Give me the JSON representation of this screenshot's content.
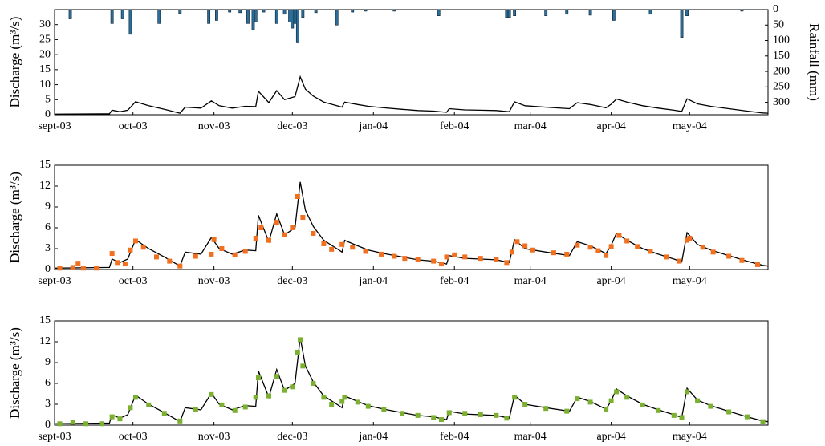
{
  "chart_data": [
    {
      "type": "line",
      "ylabel": "Discharge (m³/s)",
      "y2label": "Rainfall (mm)",
      "xlim": [
        0,
        273
      ],
      "xticks": [
        {
          "value": 0,
          "label": "sept-03"
        },
        {
          "value": 30,
          "label": "oct-03"
        },
        {
          "value": 61,
          "label": "nov-03"
        },
        {
          "value": 91,
          "label": "dec-03"
        },
        {
          "value": 122,
          "label": "jan-04"
        },
        {
          "value": 153,
          "label": "feb-04"
        },
        {
          "value": 182,
          "label": "mar-04"
        },
        {
          "value": 213,
          "label": "apr-04"
        },
        {
          "value": 243,
          "label": "may-04"
        }
      ],
      "ylim": [
        0,
        35
      ],
      "yticks": [
        0,
        5,
        10,
        15,
        20,
        25,
        30
      ],
      "y2lim": [
        0,
        340
      ],
      "y2ticks": [
        0,
        50,
        100,
        150,
        200,
        250,
        300
      ],
      "y2_inverted": true,
      "series": [
        {
          "type": "bar",
          "axis": "y2",
          "color": "#2c6e99",
          "x": [
            6,
            22,
            26,
            29,
            40,
            48,
            59,
            62,
            67,
            71,
            74,
            76,
            77,
            80,
            85,
            88,
            90,
            91,
            92,
            93,
            95,
            100,
            108,
            114,
            119,
            130,
            147,
            173,
            174,
            176,
            188,
            196,
            205,
            214,
            228,
            240,
            242,
            263
          ],
          "values": [
            30,
            45,
            30,
            80,
            45,
            12,
            45,
            35,
            8,
            10,
            45,
            65,
            40,
            8,
            45,
            15,
            40,
            60,
            45,
            105,
            25,
            10,
            50,
            8,
            5,
            5,
            20,
            25,
            25,
            20,
            20,
            15,
            18,
            35,
            15,
            90,
            20,
            5
          ]
        },
        {
          "type": "line",
          "color": "#000000",
          "x": [
            0,
            21,
            22,
            25,
            28,
            31,
            36,
            42,
            48,
            50,
            56,
            60,
            63,
            68,
            73,
            77,
            78,
            82,
            85,
            88,
            92,
            94,
            96,
            99,
            103,
            108,
            110,
            111,
            116,
            120,
            126,
            133,
            139,
            145,
            150,
            151,
            157,
            163,
            169,
            174,
            176,
            180,
            188,
            197,
            200,
            205,
            211,
            213,
            215,
            219,
            225,
            231,
            237,
            240,
            242,
            246,
            251,
            258,
            265,
            271,
            273
          ],
          "values": [
            0.2,
            0.3,
            1.5,
            1.0,
            1.5,
            4.3,
            3.0,
            1.8,
            0.5,
            2.5,
            2.2,
            4.6,
            3.0,
            2.2,
            2.8,
            2.7,
            7.8,
            4.0,
            8.0,
            5.0,
            6.0,
            12.6,
            8.5,
            6.2,
            4.2,
            3.0,
            2.5,
            4.2,
            3.4,
            2.8,
            2.3,
            1.8,
            1.4,
            1.2,
            0.8,
            2.0,
            1.6,
            1.5,
            1.4,
            1.0,
            4.3,
            3.0,
            2.5,
            2.0,
            4.0,
            3.4,
            2.3,
            3.5,
            5.2,
            4.2,
            3.0,
            2.2,
            1.5,
            1.1,
            5.3,
            3.6,
            2.8,
            2.0,
            1.2,
            0.6,
            0.5
          ]
        }
      ]
    },
    {
      "type": "line",
      "ylabel": "Discharge (m³/s)",
      "xlim": [
        0,
        273
      ],
      "xticks": [
        {
          "value": 0,
          "label": "sept-03"
        },
        {
          "value": 30,
          "label": "oct-03"
        },
        {
          "value": 61,
          "label": "nov-03"
        },
        {
          "value": 91,
          "label": "dec-03"
        },
        {
          "value": 122,
          "label": "jan-04"
        },
        {
          "value": 153,
          "label": "feb-04"
        },
        {
          "value": 182,
          "label": "mar-04"
        },
        {
          "value": 213,
          "label": "apr-04"
        },
        {
          "value": 243,
          "label": "may-04"
        }
      ],
      "ylim": [
        0,
        15
      ],
      "yticks": [
        0,
        3,
        6,
        9,
        12,
        15
      ],
      "series": [
        {
          "type": "line",
          "color": "#000000",
          "x": [
            0,
            21,
            22,
            25,
            28,
            31,
            36,
            42,
            48,
            50,
            56,
            60,
            63,
            68,
            73,
            77,
            78,
            82,
            85,
            88,
            92,
            94,
            96,
            99,
            103,
            108,
            110,
            111,
            116,
            120,
            126,
            133,
            139,
            145,
            150,
            151,
            157,
            163,
            169,
            174,
            176,
            180,
            188,
            197,
            200,
            205,
            211,
            213,
            215,
            219,
            225,
            231,
            237,
            240,
            242,
            246,
            251,
            258,
            265,
            271,
            273
          ],
          "values": [
            0.2,
            0.3,
            1.5,
            1.0,
            1.5,
            4.3,
            3.0,
            1.8,
            0.5,
            2.5,
            2.2,
            4.6,
            3.0,
            2.2,
            2.8,
            2.7,
            7.8,
            4.0,
            8.0,
            5.0,
            6.0,
            12.6,
            8.5,
            6.2,
            4.2,
            3.0,
            2.5,
            4.2,
            3.4,
            2.8,
            2.3,
            1.8,
            1.4,
            1.2,
            0.8,
            2.0,
            1.6,
            1.5,
            1.4,
            1.0,
            4.3,
            3.0,
            2.5,
            2.0,
            4.0,
            3.4,
            2.3,
            3.5,
            5.2,
            4.2,
            3.0,
            2.2,
            1.5,
            1.1,
            5.3,
            3.6,
            2.8,
            2.0,
            1.2,
            0.6,
            0.5
          ]
        },
        {
          "type": "scatter",
          "color": "#f07020",
          "x": [
            2,
            7,
            9,
            11,
            16,
            22,
            24,
            27,
            29,
            31,
            34,
            39,
            44,
            48,
            54,
            60,
            61,
            64,
            69,
            73,
            77,
            79,
            82,
            85,
            88,
            91,
            93,
            95,
            99,
            103,
            106,
            110,
            114,
            119,
            125,
            130,
            134,
            139,
            145,
            148,
            150,
            153,
            157,
            163,
            169,
            173,
            175,
            177,
            180,
            183,
            191,
            196,
            200,
            205,
            208,
            211,
            213,
            216,
            219,
            223,
            228,
            234,
            239,
            242,
            243,
            248,
            252,
            258,
            263,
            269
          ],
          "values": [
            0.2,
            0.3,
            0.9,
            0.2,
            0.2,
            2.3,
            1.0,
            0.8,
            2.8,
            4.1,
            3.2,
            1.8,
            1.2,
            0.5,
            1.9,
            2.2,
            4.3,
            3.0,
            2.1,
            2.6,
            4.5,
            6.0,
            4.2,
            6.8,
            5.0,
            6.0,
            10.5,
            7.5,
            5.2,
            3.7,
            2.9,
            3.6,
            3.2,
            2.6,
            2.2,
            1.9,
            1.6,
            1.4,
            1.2,
            0.8,
            1.8,
            2.1,
            1.8,
            1.6,
            1.4,
            1.0,
            2.5,
            4.0,
            3.4,
            2.8,
            2.4,
            2.2,
            3.5,
            3.2,
            2.7,
            2.0,
            3.3,
            4.9,
            4.1,
            3.3,
            2.6,
            1.8,
            1.2,
            4.2,
            4.5,
            3.2,
            2.5,
            1.9,
            1.3,
            0.7
          ]
        }
      ]
    },
    {
      "type": "line",
      "ylabel": "Discharge (m³/s)",
      "xlim": [
        0,
        273
      ],
      "xticks": [
        {
          "value": 0,
          "label": "sept-03"
        },
        {
          "value": 30,
          "label": "oct-03"
        },
        {
          "value": 61,
          "label": "nov-03"
        },
        {
          "value": 91,
          "label": "dec-03"
        },
        {
          "value": 122,
          "label": "jan-04"
        },
        {
          "value": 153,
          "label": "feb-04"
        },
        {
          "value": 182,
          "label": "mar-04"
        },
        {
          "value": 213,
          "label": "apr-04"
        },
        {
          "value": 243,
          "label": "may-04"
        }
      ],
      "ylim": [
        0,
        15
      ],
      "yticks": [
        0,
        3,
        6,
        9,
        12,
        15
      ],
      "series": [
        {
          "type": "line",
          "color": "#000000",
          "x": [
            0,
            21,
            22,
            25,
            28,
            31,
            36,
            42,
            48,
            50,
            56,
            60,
            63,
            68,
            73,
            77,
            78,
            82,
            85,
            88,
            92,
            94,
            96,
            99,
            103,
            108,
            110,
            111,
            116,
            120,
            126,
            133,
            139,
            145,
            150,
            151,
            157,
            163,
            169,
            174,
            176,
            180,
            188,
            197,
            200,
            205,
            211,
            213,
            215,
            219,
            225,
            231,
            237,
            240,
            242,
            246,
            251,
            258,
            265,
            271,
            273
          ],
          "values": [
            0.2,
            0.3,
            1.5,
            1.0,
            1.5,
            4.3,
            3.0,
            1.8,
            0.5,
            2.5,
            2.2,
            4.6,
            3.0,
            2.2,
            2.8,
            2.7,
            7.8,
            4.0,
            8.0,
            5.0,
            6.0,
            12.6,
            8.5,
            6.2,
            4.2,
            3.0,
            2.5,
            4.2,
            3.4,
            2.8,
            2.3,
            1.8,
            1.4,
            1.2,
            0.8,
            2.0,
            1.6,
            1.5,
            1.4,
            1.0,
            4.3,
            3.0,
            2.5,
            2.0,
            4.0,
            3.4,
            2.3,
            3.5,
            5.2,
            4.2,
            3.0,
            2.2,
            1.5,
            1.1,
            5.3,
            3.6,
            2.8,
            2.0,
            1.2,
            0.6,
            0.5
          ]
        },
        {
          "type": "scatter",
          "color": "#7cb030",
          "x": [
            2,
            7,
            12,
            18,
            22,
            25,
            29,
            31,
            36,
            42,
            48,
            54,
            60,
            64,
            69,
            73,
            77,
            78,
            82,
            85,
            88,
            91,
            93,
            94,
            95,
            99,
            103,
            106,
            110,
            111,
            116,
            120,
            126,
            133,
            139,
            145,
            148,
            151,
            157,
            163,
            169,
            173,
            176,
            180,
            188,
            196,
            200,
            205,
            211,
            213,
            215,
            219,
            225,
            231,
            237,
            240,
            242,
            246,
            251,
            258,
            265,
            271
          ],
          "values": [
            0.2,
            0.4,
            0.2,
            0.2,
            1.2,
            0.9,
            2.5,
            4.0,
            2.9,
            1.7,
            0.6,
            2.2,
            4.4,
            2.9,
            2.1,
            2.6,
            4.0,
            6.8,
            4.2,
            7.0,
            5.0,
            5.5,
            10.5,
            12.3,
            8.5,
            6.0,
            4.0,
            3.0,
            3.4,
            4.0,
            3.3,
            2.7,
            2.2,
            1.7,
            1.4,
            1.1,
            0.8,
            1.8,
            1.7,
            1.5,
            1.4,
            1.0,
            4.0,
            3.0,
            2.4,
            2.0,
            3.8,
            3.3,
            2.2,
            3.5,
            4.8,
            4.0,
            2.9,
            2.1,
            1.4,
            1.1,
            4.8,
            3.5,
            2.7,
            1.9,
            1.2,
            0.5
          ]
        }
      ]
    }
  ]
}
